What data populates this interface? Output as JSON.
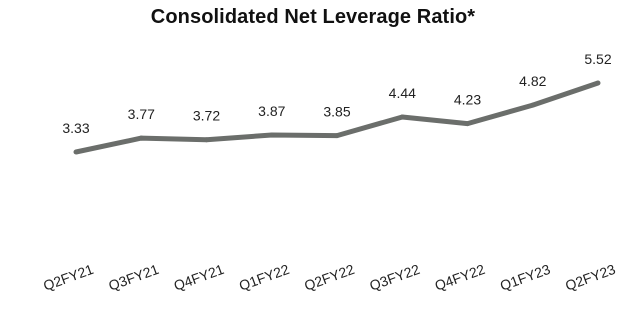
{
  "chart_data": {
    "type": "line",
    "title": "Consolidated Net Leverage Ratio*",
    "categories": [
      "Q2FY21",
      "Q3FY21",
      "Q4FY21",
      "Q1FY22",
      "Q2FY22",
      "Q3FY22",
      "Q4FY22",
      "Q1FY23",
      "Q2FY23"
    ],
    "series": [
      {
        "values": [
          3.33,
          3.77,
          3.72,
          3.87,
          3.85,
          4.44,
          4.23,
          4.82,
          5.52
        ],
        "data_labels": [
          "3.33",
          "3.77",
          "3.72",
          "3.87",
          "3.85",
          "4.44",
          "4.23",
          "4.82",
          "5.52"
        ]
      }
    ],
    "xlabel": "",
    "ylabel": "",
    "ylim": [
      0,
      6
    ],
    "grid": false,
    "legend": "none",
    "line_color": "#6b6e6b"
  }
}
